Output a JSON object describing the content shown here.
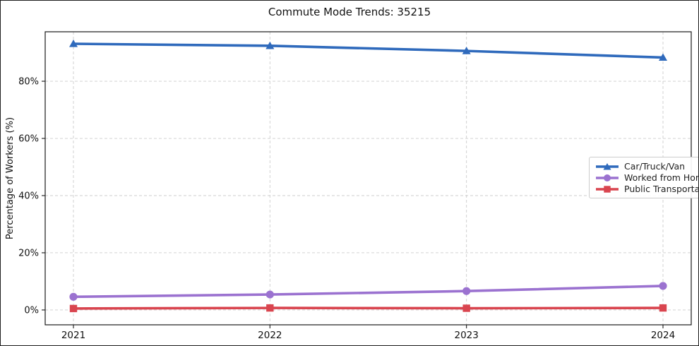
{
  "chart_data": {
    "type": "line",
    "title": "Commute Mode Trends: 35215",
    "xlabel": "",
    "ylabel": "Percentage of Workers (%)",
    "x": [
      "2021",
      "2022",
      "2023",
      "2024"
    ],
    "y_ticks": [
      0,
      20,
      40,
      60,
      80
    ],
    "y_tick_labels": [
      "0%",
      "20%",
      "40%",
      "60%",
      "80%"
    ],
    "ylim": [
      -5.2,
      97.3
    ],
    "grid": "dashed-both-axes",
    "grid_color": "#cccccc",
    "axis_color": "#1a1a1a",
    "legend_position": "center-right",
    "series": [
      {
        "name": "Car/Truck/Van",
        "values": [
          93.1,
          92.4,
          90.6,
          88.3
        ],
        "color": "#2f6abc",
        "marker": "triangle"
      },
      {
        "name": "Worked from Home",
        "values": [
          4.6,
          5.4,
          6.6,
          8.4
        ],
        "color": "#9b72d0",
        "marker": "circle"
      },
      {
        "name": "Public Transportation",
        "values": [
          0.5,
          0.7,
          0.6,
          0.7
        ],
        "color": "#d9454f",
        "marker": "square"
      }
    ]
  }
}
